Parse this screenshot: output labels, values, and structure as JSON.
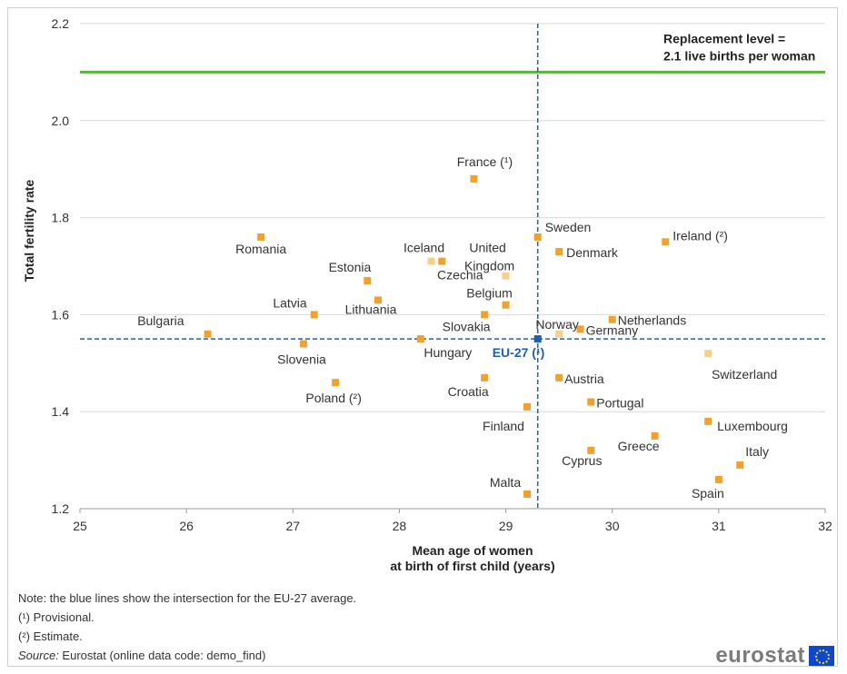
{
  "chart_data": {
    "type": "scatter",
    "xlabel_line1": "Mean age of women",
    "xlabel_line2": "at birth of first child (years)",
    "ylabel": "Total fertility  rate",
    "xlim": [
      25,
      32
    ],
    "ylim": [
      1.2,
      2.2
    ],
    "xticks": [
      "25",
      "26",
      "27",
      "28",
      "29",
      "30",
      "31",
      "32"
    ],
    "yticks": [
      "1.2",
      "1.4",
      "1.6",
      "1.8",
      "2.0",
      "2.2"
    ],
    "grid": "horizontal",
    "replacement": {
      "value": 2.1,
      "label_line1": "Replacement level =",
      "label_line2": "2.1 live births per woman",
      "color": "#5bb33c"
    },
    "eu_average": {
      "label": "EU-27 (¹)",
      "x": 29.3,
      "y": 1.55,
      "color": "#1f5fb0"
    },
    "marker_color": "#f0a22e",
    "marker_color_light": "#f8cf8b",
    "points": [
      {
        "name": "Bulgaria",
        "x": 26.2,
        "y": 1.56
      },
      {
        "name": "Romania",
        "x": 26.7,
        "y": 1.76
      },
      {
        "name": "Slovenia",
        "x": 27.1,
        "y": 1.54
      },
      {
        "name": "Latvia",
        "x": 27.2,
        "y": 1.6
      },
      {
        "name": "Poland (²)",
        "x": 27.4,
        "y": 1.46
      },
      {
        "name": "Estonia",
        "x": 27.7,
        "y": 1.67
      },
      {
        "name": "Lithuania",
        "x": 27.8,
        "y": 1.63
      },
      {
        "name": "Hungary",
        "x": 28.2,
        "y": 1.55
      },
      {
        "name": "Iceland",
        "x": 28.3,
        "y": 1.71
      },
      {
        "name": "Czechia",
        "x": 28.4,
        "y": 1.71
      },
      {
        "name": "France (¹)",
        "x": 28.7,
        "y": 1.88
      },
      {
        "name": "Slovakia",
        "x": 28.8,
        "y": 1.6
      },
      {
        "name": "Croatia",
        "x": 28.8,
        "y": 1.47
      },
      {
        "name": "United Kingdom",
        "x": 29.0,
        "y": 1.68
      },
      {
        "name": "Belgium",
        "x": 29.0,
        "y": 1.62
      },
      {
        "name": "Finland",
        "x": 29.2,
        "y": 1.41
      },
      {
        "name": "Malta",
        "x": 29.2,
        "y": 1.23
      },
      {
        "name": "Sweden",
        "x": 29.3,
        "y": 1.76
      },
      {
        "name": "Denmark",
        "x": 29.5,
        "y": 1.73
      },
      {
        "name": "Norway",
        "x": 29.5,
        "y": 1.56
      },
      {
        "name": "Austria",
        "x": 29.5,
        "y": 1.47
      },
      {
        "name": "Germany",
        "x": 29.7,
        "y": 1.57
      },
      {
        "name": "Portugal",
        "x": 29.8,
        "y": 1.42
      },
      {
        "name": "Cyprus",
        "x": 29.8,
        "y": 1.32
      },
      {
        "name": "Netherlands",
        "x": 30.0,
        "y": 1.59
      },
      {
        "name": "Greece",
        "x": 30.4,
        "y": 1.35
      },
      {
        "name": "Ireland (²)",
        "x": 30.5,
        "y": 1.75
      },
      {
        "name": "Switzerland",
        "x": 30.9,
        "y": 1.52
      },
      {
        "name": "Luxembourg",
        "x": 30.9,
        "y": 1.38
      },
      {
        "name": "Spain",
        "x": 31.0,
        "y": 1.26
      },
      {
        "name": "Italy",
        "x": 31.2,
        "y": 1.29
      }
    ]
  },
  "notes": {
    "note": "Note: the blue lines show the intersection for the EU-27 average.",
    "provisional": "(¹) Provisional.",
    "estimate": "(²) Estimate.",
    "source_label": "Source:",
    "source_text": " Eurostat (online data code: demo_find)"
  },
  "logo": {
    "text": "eurostat"
  }
}
